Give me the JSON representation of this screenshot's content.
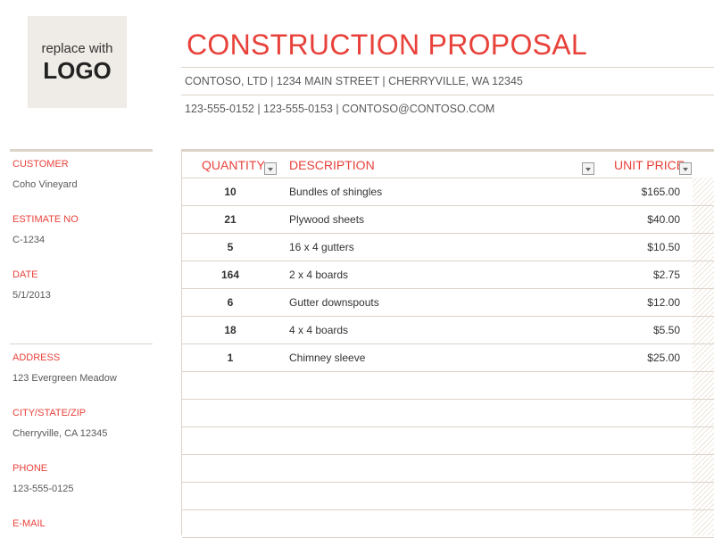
{
  "logo": {
    "line1": "replace with",
    "line2": "LOGO"
  },
  "header": {
    "title": "CONSTRUCTION PROPOSAL",
    "address": "CONTOSO, LTD  |  1234 MAIN STREET  |  CHERRYVILLE, WA 12345",
    "contact": "123-555-0152  |  123-555-0153  |  CONTOSO@CONTOSO.COM"
  },
  "sidebar": [
    {
      "label": "CUSTOMER",
      "value": "Coho Vineyard"
    },
    {
      "label": "ESTIMATE NO",
      "value": "C-1234"
    },
    {
      "label": "DATE",
      "value": "5/1/2013"
    },
    {
      "label": "ADDRESS",
      "value": "123 Evergreen Meadow"
    },
    {
      "label": "CITY/STATE/ZIP",
      "value": "Cherryville, CA 12345"
    },
    {
      "label": "PHONE",
      "value": "123-555-0125"
    },
    {
      "label": "E-MAIL",
      "value": ""
    }
  ],
  "table": {
    "columns": [
      "QUANTITY",
      "DESCRIPTION",
      "UNIT PRICE"
    ],
    "rows": [
      {
        "qty": "10",
        "desc": "Bundles of shingles",
        "price": "$165.00"
      },
      {
        "qty": "21",
        "desc": "Plywood sheets",
        "price": "$40.00"
      },
      {
        "qty": "5",
        "desc": "16 x 4 gutters",
        "price": "$10.50"
      },
      {
        "qty": "164",
        "desc": "2 x 4 boards",
        "price": "$2.75"
      },
      {
        "qty": "6",
        "desc": "Gutter downspouts",
        "price": "$12.00"
      },
      {
        "qty": "18",
        "desc": "4 x 4 boards",
        "price": "$5.50"
      },
      {
        "qty": "1",
        "desc": "Chimney sleeve",
        "price": "$25.00"
      }
    ]
  },
  "colors": {
    "accent": "#e8413a",
    "rule": "#dcd3c9"
  }
}
